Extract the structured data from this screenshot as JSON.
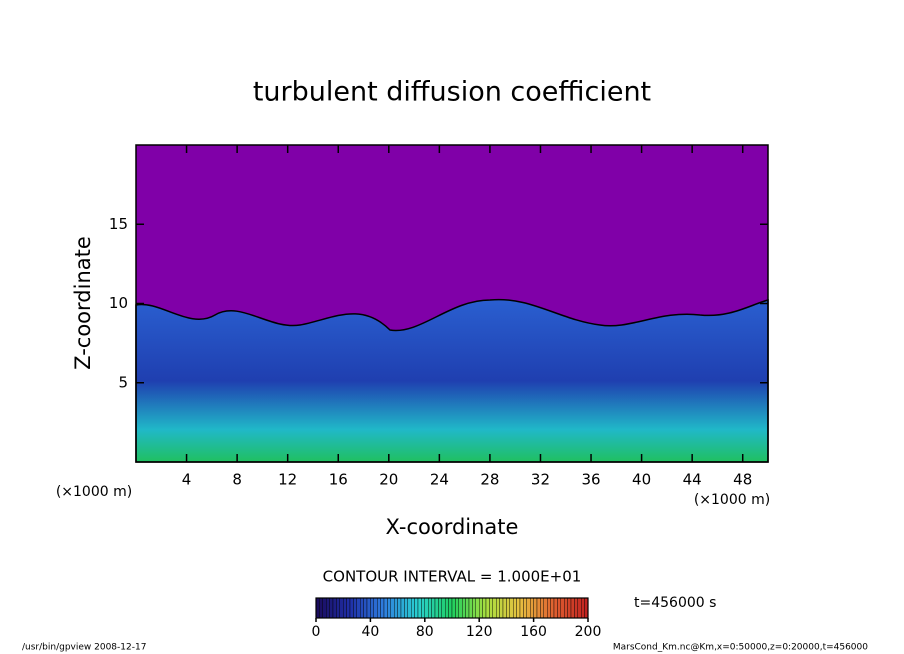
{
  "chart_data": {
    "type": "contour",
    "title": "turbulent diffusion coefficient",
    "xlabel": "X-coordinate",
    "ylabel": "Z-coordinate",
    "axis_unit": "(×1000 m)",
    "xlim": [
      0,
      50
    ],
    "xticks": [
      4,
      8,
      12,
      16,
      20,
      24,
      28,
      32,
      36,
      40,
      44,
      48
    ],
    "ylim": [
      0,
      20
    ],
    "yticks": [
      5,
      10,
      15
    ],
    "colorbar": {
      "lim": [
        0,
        200
      ],
      "ticks": [
        0,
        40,
        80,
        120,
        160,
        200
      ],
      "colors": [
        "#1a0a5a",
        "#1f2fa8",
        "#2f7fe0",
        "#29d0d0",
        "#1fd060",
        "#a8e040",
        "#e8c040",
        "#e06030",
        "#c02020"
      ]
    },
    "contour_interval": "CONTOUR INTERVAL = 1.000E+01",
    "time_label": "t=456000 s",
    "footer_left": "/usr/bin/gpview  2008-12-17",
    "footer_right": "MarsCond_Km.nc@Km,x=0:50000,z=0:20000,t=456000"
  }
}
